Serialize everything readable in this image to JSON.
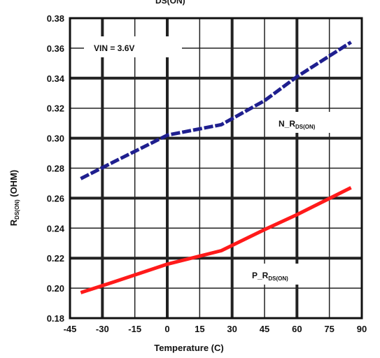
{
  "chart_data": {
    "type": "line",
    "title_fragment": "DS(ON)",
    "xlabel": "Temperature (C)",
    "ylabel": {
      "main": "R",
      "sub": "DS(ON)",
      "rest": " (OHM)"
    },
    "xlim": [
      -45,
      90
    ],
    "ylim": [
      0.18,
      0.38
    ],
    "x_ticks": [
      "-45",
      "-30",
      "-15",
      "0",
      "15",
      "30",
      "45",
      "60",
      "75",
      "90"
    ],
    "y_ticks": [
      "0.18",
      "0.20",
      "0.22",
      "0.24",
      "0.26",
      "0.28",
      "0.30",
      "0.32",
      "0.34",
      "0.36",
      "0.38"
    ],
    "grid": true,
    "annotations": [
      {
        "text": "VIN = 3.6V"
      },
      {
        "main": "N_R",
        "sub": "DS(ON)"
      },
      {
        "main": "P_R",
        "sub": "DS(ON)"
      }
    ],
    "series": [
      {
        "name": "N_RDS(ON)",
        "color": "#1f1f8f",
        "style": "dashed",
        "x": [
          -40,
          -25,
          0,
          25,
          45,
          60,
          85
        ],
        "y": [
          0.273,
          0.284,
          0.302,
          0.309,
          0.325,
          0.341,
          0.364
        ]
      },
      {
        "name": "P_RDS(ON)",
        "color": "#ff1a1a",
        "style": "solid",
        "x": [
          -40,
          -25,
          0,
          25,
          45,
          60,
          85
        ],
        "y": [
          0.197,
          0.204,
          0.216,
          0.225,
          0.239,
          0.249,
          0.267
        ]
      }
    ]
  }
}
